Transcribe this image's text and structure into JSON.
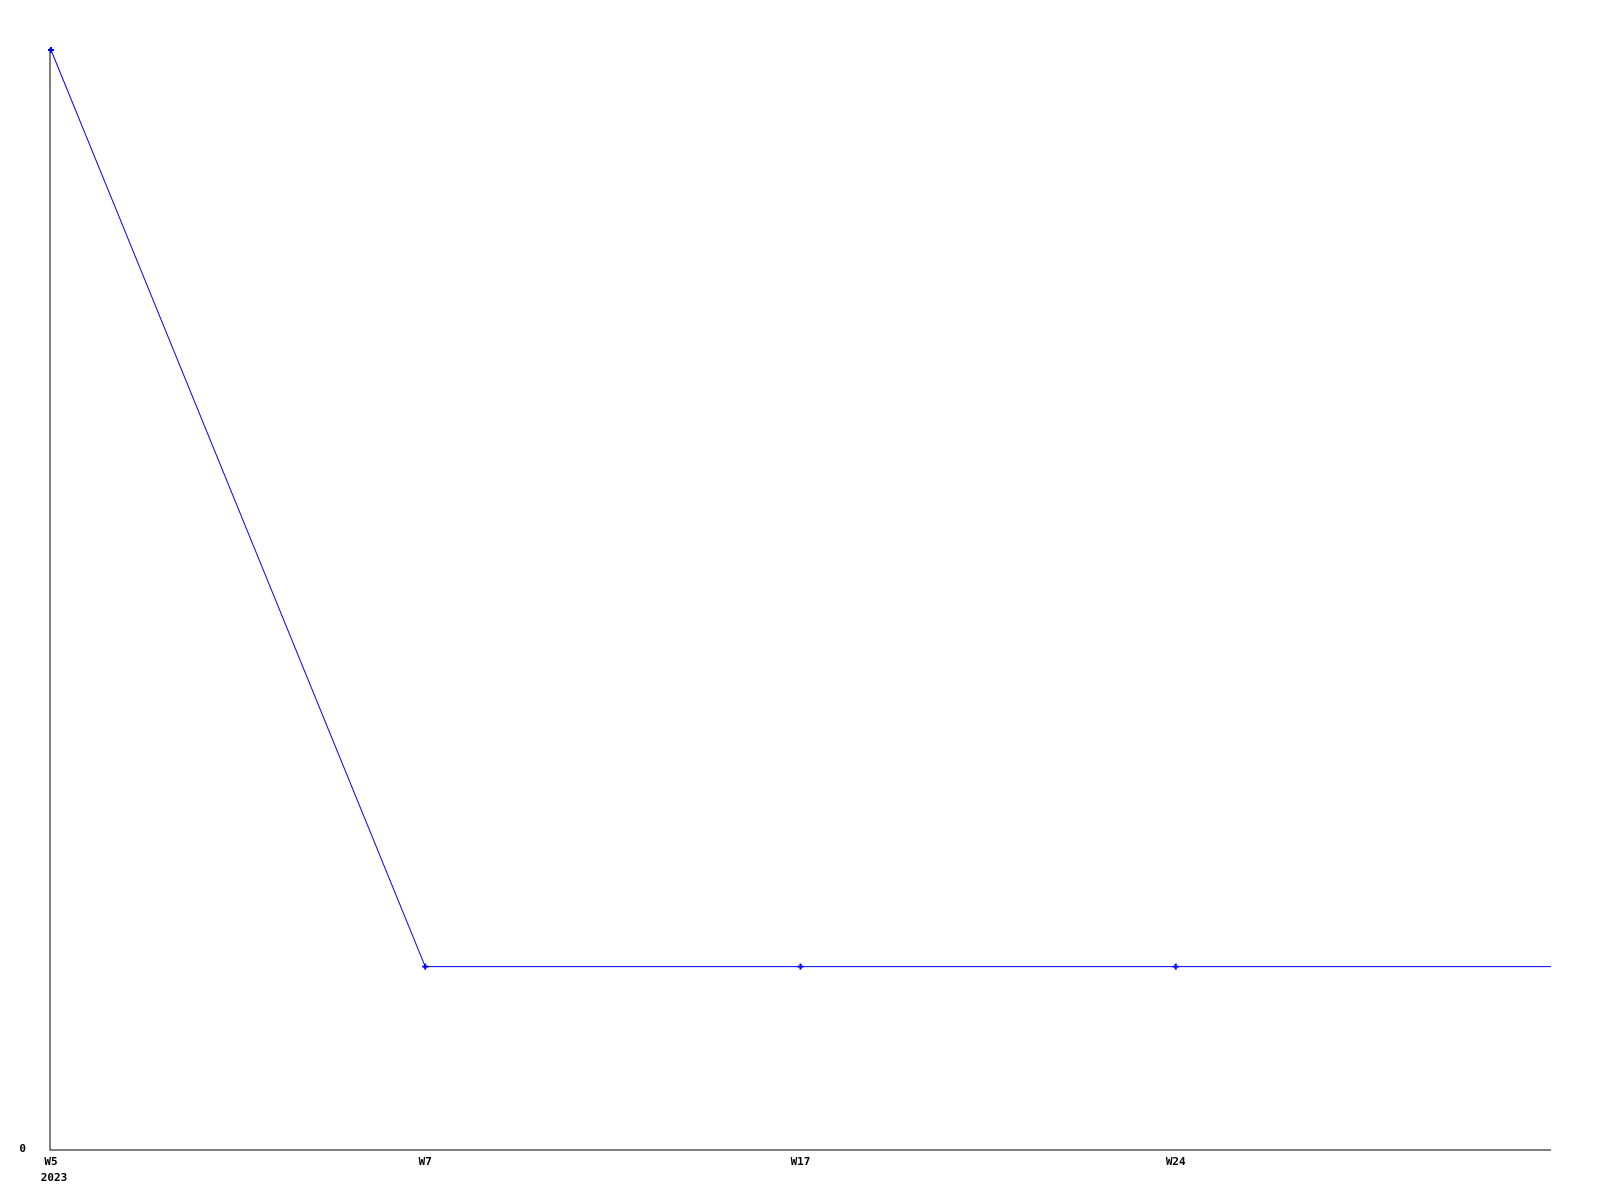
{
  "chart_data": {
    "type": "line",
    "title": "",
    "categories": [
      "W5",
      "W7",
      "W17",
      "W24"
    ],
    "values": [
      6,
      1,
      1,
      1
    ],
    "x_year_label": "2023",
    "y_tick_labels": [
      {
        "value": 0,
        "label": "0"
      }
    ],
    "ylim": [
      0,
      6
    ],
    "xlabel": "",
    "ylabel": "",
    "legend": "none",
    "grid": false,
    "line_extends_to_plot_edge": true,
    "marker": "plus",
    "colors": {
      "line": "#0000ff",
      "marker": "#0000ff",
      "axis": "#000000",
      "text": "#000000",
      "background": "#ffffff"
    }
  }
}
